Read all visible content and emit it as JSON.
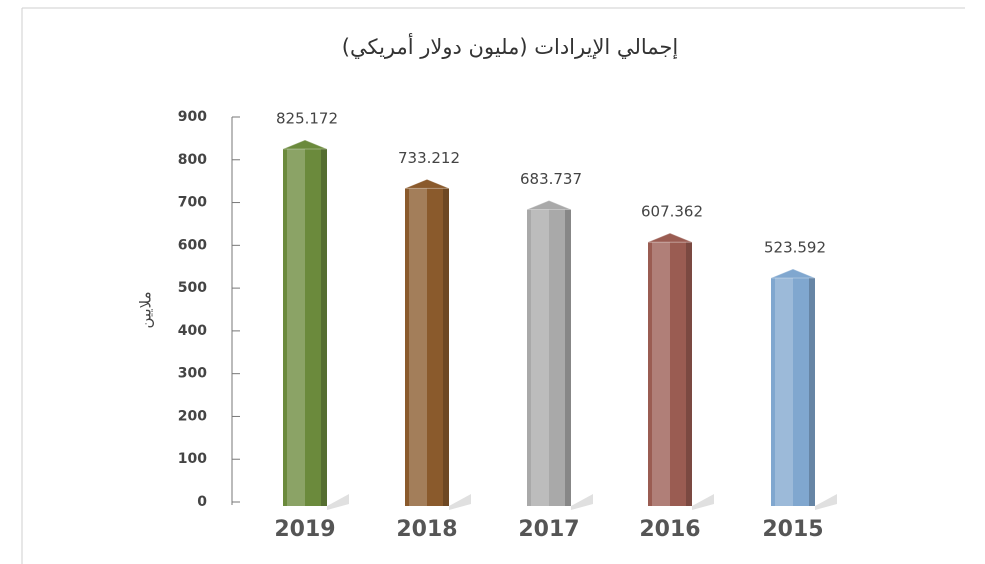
{
  "chart_data": {
    "type": "bar",
    "title": "إجمالي الإيرادات (مليون دولار أمريكي)",
    "y_label": "ملايين",
    "categories": [
      "2019",
      "2018",
      "2017",
      "2016",
      "2015"
    ],
    "values": [
      825.172,
      733.212,
      683.737,
      607.362,
      523.592
    ],
    "colors": [
      "#6b8a3c",
      "#8a5a2c",
      "#a9a9a9",
      "#9a5c52",
      "#80a7cf"
    ],
    "ylim": [
      0,
      900
    ],
    "yticks": [
      0,
      100,
      200,
      300,
      400,
      500,
      600,
      700,
      800,
      900
    ]
  }
}
